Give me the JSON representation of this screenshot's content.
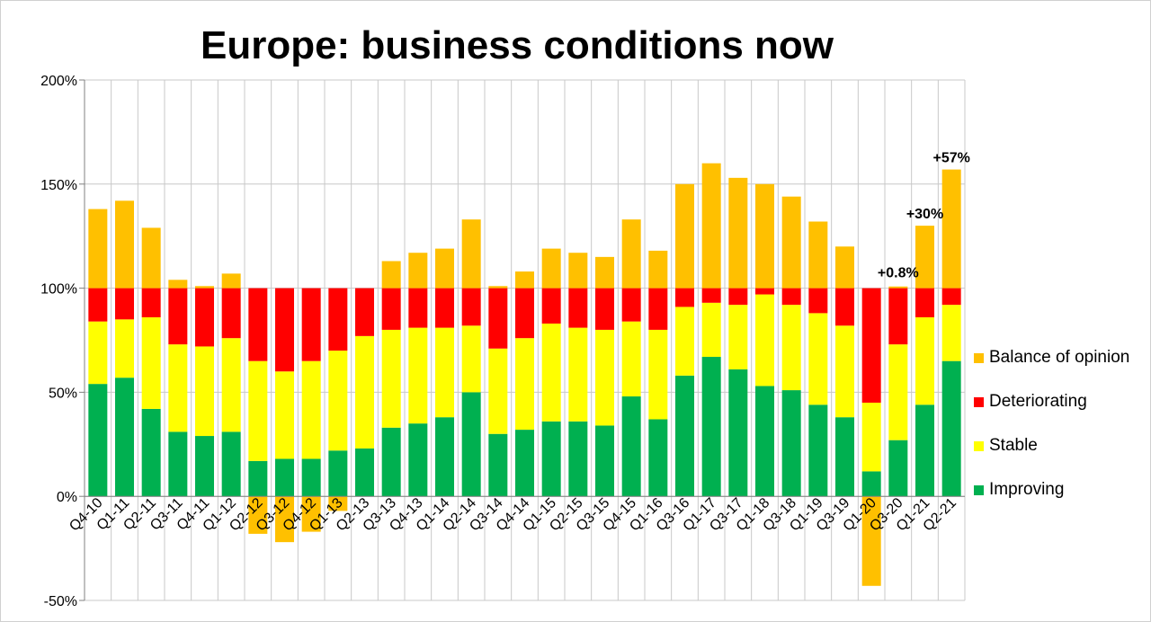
{
  "chart_data": {
    "type": "bar",
    "stacked": true,
    "title": "Europe: business conditions now",
    "ylim": [
      -50,
      200
    ],
    "yticks": [
      "-50%",
      "0%",
      "50%",
      "100%",
      "150%",
      "200%"
    ],
    "grid": true,
    "legend_position": "right",
    "categories": [
      "Q4-10",
      "Q1-11",
      "Q2-11",
      "Q3-11",
      "Q4-11",
      "Q1-12",
      "Q2-12",
      "Q3-12",
      "Q4-12",
      "Q1-13",
      "Q2-13",
      "Q3-13",
      "Q4-13",
      "Q1-14",
      "Q2-14",
      "Q3-14",
      "Q4-14",
      "Q1-15",
      "Q2-15",
      "Q3-15",
      "Q4-15",
      "Q1-16",
      "Q3-16",
      "Q1-17",
      "Q3-17",
      "Q1-18",
      "Q3-18",
      "Q1-19",
      "Q3-19",
      "Q1-20",
      "Q3-20",
      "Q1-21",
      "Q2-21"
    ],
    "series": [
      {
        "name": "Improving",
        "color": "#00b050",
        "values": [
          54,
          57,
          42,
          31,
          29,
          31,
          17,
          18,
          18,
          22,
          23,
          33,
          35,
          38,
          50,
          30,
          32,
          36,
          36,
          34,
          48,
          37,
          58,
          67,
          61,
          53,
          51,
          44,
          38,
          12,
          27,
          44,
          65
        ]
      },
      {
        "name": "Stable",
        "color": "#ffff00",
        "values": [
          30,
          28,
          44,
          42,
          43,
          45,
          48,
          42,
          47,
          48,
          54,
          47,
          46,
          43,
          32,
          41,
          44,
          47,
          45,
          46,
          36,
          43,
          33,
          26,
          31,
          44,
          41,
          44,
          44,
          33,
          46,
          42,
          27
        ]
      },
      {
        "name": "Deteriorating",
        "color": "#ff0000",
        "values": [
          16,
          15,
          14,
          27,
          28,
          24,
          35,
          40,
          35,
          30,
          23,
          20,
          19,
          19,
          18,
          29,
          24,
          17,
          19,
          20,
          16,
          20,
          9,
          7,
          8,
          3,
          8,
          12,
          18,
          55,
          27,
          14,
          8
        ]
      },
      {
        "name": "Balance of opinion",
        "color": "#ffc000",
        "values": [
          38,
          42,
          29,
          4,
          1,
          7,
          -18,
          -22,
          -17,
          -7,
          0,
          13,
          17,
          19,
          33,
          1,
          8,
          19,
          17,
          15,
          33,
          18,
          50,
          60,
          53,
          50,
          44,
          32,
          20,
          -43,
          0.8,
          30,
          57
        ]
      }
    ],
    "annotations": [
      {
        "category": "Q1-21",
        "text": "+30%"
      },
      {
        "category": "Q2-21",
        "text": "+57%"
      },
      {
        "category": "Q3-20",
        "text": "+0.8%"
      }
    ],
    "legend_order": [
      "Balance of opinion",
      "Deteriorating",
      "Stable",
      "Improving"
    ]
  }
}
